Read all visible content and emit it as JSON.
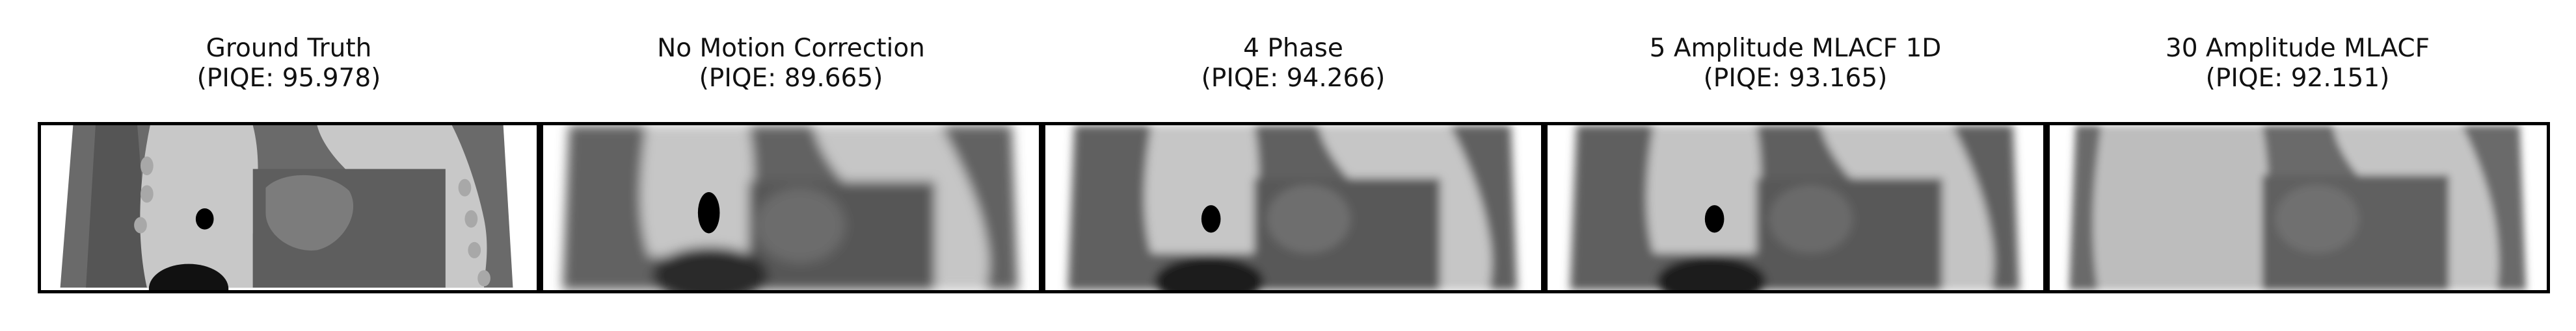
{
  "panels": [
    {
      "title": "Ground Truth",
      "metric": "(PIQE: 95.978)"
    },
    {
      "title": "No Motion Correction",
      "metric": "(PIQE: 89.665)"
    },
    {
      "title": "4 Phase",
      "metric": "(PIQE: 94.266)"
    },
    {
      "title": "5 Amplitude MLACF 1D",
      "metric": "(PIQE: 93.165)"
    },
    {
      "title": "30 Amplitude MLACF",
      "metric": "(PIQE: 92.151)"
    }
  ],
  "colors": {
    "border": "#000000",
    "background": "#ffffff",
    "tissue_dark": "#5a5a5a",
    "tissue_mid": "#7a7a7a",
    "lung_light": "#c8c8c8",
    "lesion": "#000000"
  }
}
